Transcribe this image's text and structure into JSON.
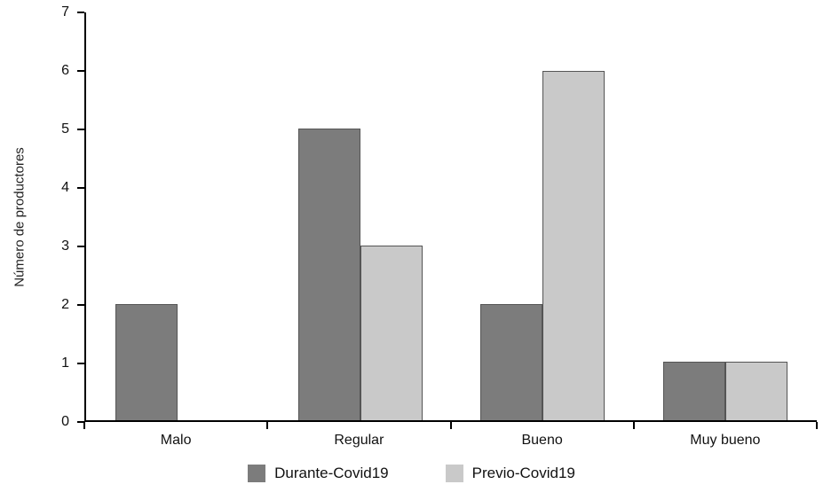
{
  "chart_data": {
    "type": "bar",
    "categories": [
      "Malo",
      "Regular",
      "Bueno",
      "Muy bueno"
    ],
    "series": [
      {
        "name": "Durante-Covid19",
        "color": "#7c7c7c",
        "values": [
          2,
          5,
          2,
          1
        ]
      },
      {
        "name": "Previo-Covid19",
        "color": "#c9c9c9",
        "values": [
          0,
          3,
          6,
          1
        ]
      }
    ],
    "title": "",
    "xlabel": "",
    "ylabel": "Número de productores",
    "ylim": [
      0,
      7
    ],
    "yticks": [
      0,
      1,
      2,
      3,
      4,
      5,
      6,
      7
    ],
    "grid": false,
    "legend_position": "bottom"
  },
  "colors": {
    "axis": "#000000",
    "bar_border": "#555555"
  }
}
